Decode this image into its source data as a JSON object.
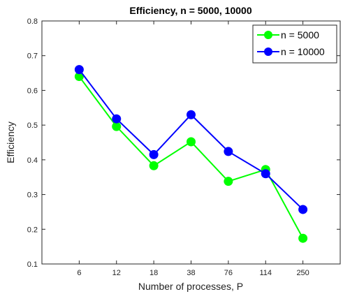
{
  "chart_data": {
    "type": "line",
    "title": "Efficiency, n = 5000, 10000",
    "xlabel": "Number of processes, P",
    "ylabel": "Efficiency",
    "categories": [
      "6",
      "12",
      "18",
      "38",
      "76",
      "114",
      "250"
    ],
    "ylim": [
      0.1,
      0.8
    ],
    "yticks": [
      "0.1",
      "0.2",
      "0.3",
      "0.4",
      "0.5",
      "0.6",
      "0.7",
      "0.8"
    ],
    "grid": false,
    "legend_position": "top-right",
    "series": [
      {
        "name": "n = 5000",
        "color": "#00ff00",
        "values": [
          0.64,
          0.496,
          0.383,
          0.452,
          0.338,
          0.372,
          0.174
        ]
      },
      {
        "name": "n = 10000",
        "color": "#0000ff",
        "values": [
          0.66,
          0.518,
          0.415,
          0.53,
          0.424,
          0.36,
          0.257
        ]
      }
    ]
  }
}
